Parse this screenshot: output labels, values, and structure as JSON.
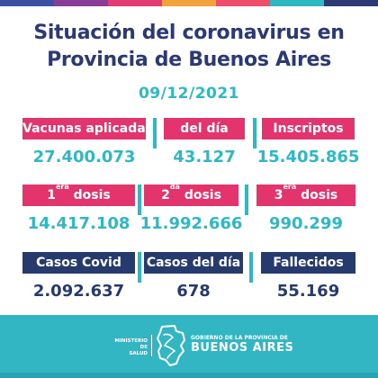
{
  "colors": {
    "topbar": [
      "#3b4fa3",
      "#8a3d98",
      "#e23b73",
      "#f2a23a",
      "#ef4e6a",
      "#2eb8c4",
      "#2b3a75"
    ],
    "pink": "#e4346e",
    "navy": "#273a6e",
    "teal": "#2eb8c4",
    "footer": "#33b6c4"
  },
  "header": {
    "title_line1": "Situación del coronavirus en",
    "title_line2": "Provincia de Buenos Aires",
    "date": "09/12/2021"
  },
  "row1": {
    "vacunas_label": "Vacunas aplicadas",
    "vacunas_value": "27.400.073",
    "dia_label": "del día",
    "dia_value": "43.127",
    "inscriptos_label": "Inscriptos",
    "inscriptos_value": "15.405.865"
  },
  "row2": {
    "dosis1_num": "1",
    "dosis1_sup": "era",
    "dosis1_word": "dosis",
    "dosis1_value": "14.417.108",
    "dosis2_num": "2",
    "dosis2_sup": "da",
    "dosis2_word": "dosis",
    "dosis2_value": "11.992.666",
    "dosis3_num": "3",
    "dosis3_sup": "era",
    "dosis3_word": "dosis",
    "dosis3_value": "990.299"
  },
  "row3": {
    "casos_label": "Casos Covid",
    "casos_value": "2.092.637",
    "casos_dia_label": "Casos del día",
    "casos_dia_value": "678",
    "fallecidos_label": "Fallecidos",
    "fallecidos_value": "55.169"
  },
  "footer": {
    "ministerio_line1": "MINISTERIO",
    "ministerio_line2": "DE",
    "ministerio_line3": "SALUD",
    "gob_line1": "GOBIERNO DE LA PROVINCIA DE",
    "gob_line2": "BUENOS AIRES"
  }
}
